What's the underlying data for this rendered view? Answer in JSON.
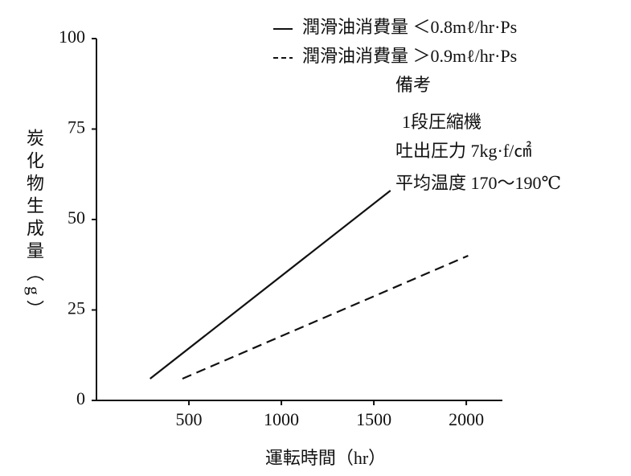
{
  "chart_data": {
    "type": "line",
    "xlabel": "運転時間（hr）",
    "ylabel": "炭化物生成量（g）",
    "xlim": [
      0,
      2130
    ],
    "xticks": [
      500,
      1000,
      1500,
      2000
    ],
    "ylim": [
      0,
      100
    ],
    "yticks": [
      0,
      25,
      50,
      75,
      100
    ],
    "series": [
      {
        "name": "潤滑油消費量 ＜0.8mℓ/hr·Ps",
        "color": "#111111",
        "linestyle": "solid",
        "x": [
          290,
          1590
        ],
        "values": [
          6,
          58
        ]
      },
      {
        "name": "潤滑油消費量 ＞0.9mℓ/hr·Ps",
        "color": "#111111",
        "linestyle": "dashed",
        "x": [
          465,
          2010
        ],
        "values": [
          6,
          40
        ]
      }
    ],
    "annotations": [
      "備考",
      "1段圧縮機",
      "吐出圧力 7kg·f/㎠",
      "平均温度 170～190℃"
    ]
  }
}
